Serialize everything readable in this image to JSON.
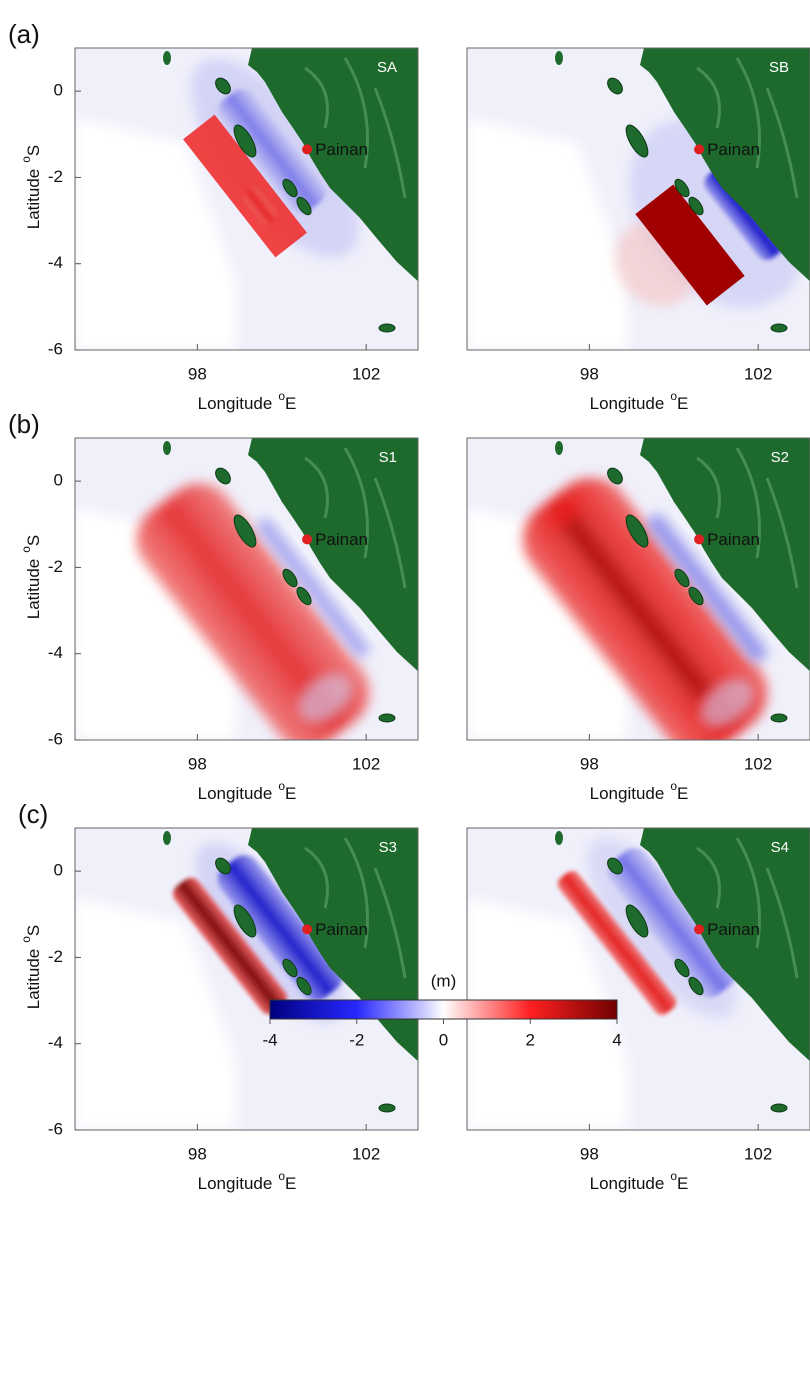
{
  "rows": [
    {
      "label": "(a)",
      "maps": [
        {
          "name": "SA"
        },
        {
          "name": "SB"
        }
      ]
    },
    {
      "label": "(b)",
      "maps": [
        {
          "name": "S1"
        },
        {
          "name": "S2"
        }
      ]
    },
    {
      "label": "(c)",
      "maps": [
        {
          "name": "S3"
        },
        {
          "name": "S4"
        }
      ]
    }
  ],
  "axes": {
    "xlabel": {
      "text": "Longitude",
      "sup": "o",
      "unit": "E"
    },
    "ylabel": {
      "text": "Latitude",
      "sup": "o",
      "unit": "S"
    },
    "xticks": [
      98,
      102
    ],
    "yticks": [
      0,
      -2,
      -4,
      -6
    ],
    "xlim": [
      95.1,
      103.3
    ],
    "ylim": [
      -6,
      1
    ]
  },
  "place": "Painan",
  "colorbar": {
    "title": "(m)",
    "ticks": [
      -4,
      -2,
      0,
      2,
      4
    ],
    "lim": [
      -4,
      4
    ]
  }
}
